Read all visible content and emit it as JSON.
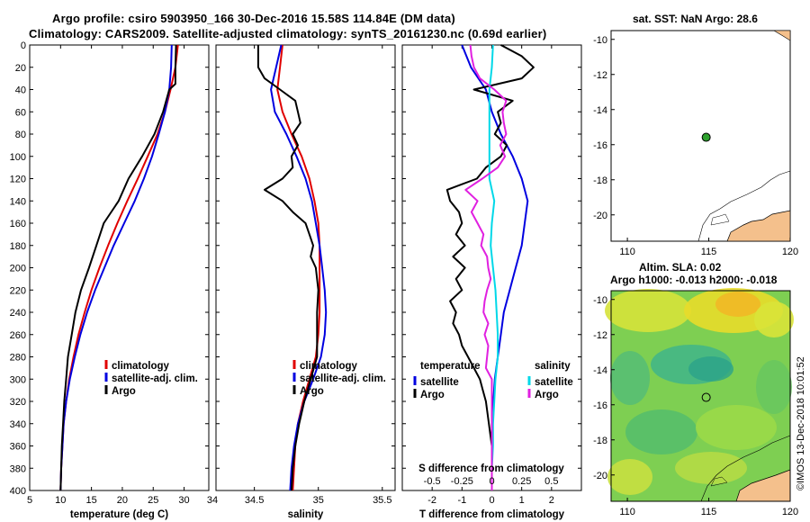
{
  "header": {
    "title_line1": "Argo profile: csiro 5903950_166 30-Dec-2016 15.58S 114.84E (DM data)",
    "title_line2": "Climatology: CARS2009. Satellite-adjusted climatology: synTS_20161230.nc (0.69d earlier)"
  },
  "map_sst": {
    "title": "sat. SST: NaN Argo: 28.6",
    "x_ticks": [
      "110",
      "115",
      "120"
    ],
    "y_ticks": [
      "-10",
      "-12",
      "-14",
      "-16",
      "-18",
      "-20"
    ],
    "xlim": [
      109,
      120
    ],
    "ylim": [
      -21.5,
      -9.5
    ],
    "argo_marker": {
      "lon": 114.84,
      "lat": -15.58,
      "color": "#2ea12e"
    },
    "land_color": "#f4c08c"
  },
  "map_sla": {
    "title_line1": "Altim. SLA: 0.02",
    "title_line2": "Argo h1000: -0.013 h2000: -0.018",
    "x_ticks": [
      "110",
      "115",
      "120"
    ],
    "y_ticks": [
      "-10",
      "-12",
      "-14",
      "-16",
      "-18",
      "-20"
    ],
    "xlim": [
      109,
      120
    ],
    "ylim": [
      -21.5,
      -9.5
    ],
    "argo_marker": {
      "lon": 114.84,
      "lat": -15.58
    }
  },
  "credit": "©IMOS 13-Dec-2018 10:01:52",
  "chart_data": [
    {
      "type": "line",
      "panel": "temperature",
      "xlabel": "temperature (deg C)",
      "ylabel": "",
      "xlim": [
        5,
        34
      ],
      "ylim": [
        400,
        0
      ],
      "x_ticks": [
        "5",
        "10",
        "15",
        "20",
        "25",
        "30"
      ],
      "x_tick_values": [
        5,
        10,
        15,
        20,
        25,
        30
      ],
      "depth_ticks": [
        "0",
        "20",
        "40",
        "60",
        "80",
        "100",
        "120",
        "140",
        "160",
        "180",
        "200",
        "220",
        "240",
        "260",
        "280",
        "300",
        "320",
        "340",
        "360",
        "380",
        "400"
      ],
      "legend": [
        "climatology",
        "satellite-adj. clim.",
        "Argo"
      ],
      "series": [
        {
          "name": "climatology",
          "color": "#e00000",
          "depth": [
            0,
            20,
            40,
            60,
            80,
            100,
            120,
            140,
            160,
            180,
            200,
            220,
            240,
            260,
            280,
            300,
            320,
            340,
            360,
            380,
            400
          ],
          "values": [
            29.0,
            28.6,
            27.8,
            26.9,
            25.7,
            24.1,
            22.5,
            20.8,
            19.2,
            17.7,
            16.3,
            15.0,
            13.9,
            12.9,
            12.1,
            11.4,
            10.9,
            10.5,
            10.3,
            10.1,
            10.0
          ]
        },
        {
          "name": "satellite-adj. clim.",
          "color": "#0000e0",
          "depth": [
            0,
            20,
            40,
            60,
            80,
            100,
            120,
            140,
            160,
            180,
            200,
            220,
            240,
            260,
            280,
            300,
            320,
            340,
            360,
            380,
            400
          ],
          "values": [
            28.0,
            27.9,
            27.6,
            26.9,
            25.9,
            24.8,
            23.5,
            22.0,
            20.3,
            18.6,
            17.1,
            15.6,
            14.3,
            13.2,
            12.3,
            11.5,
            10.9,
            10.5,
            10.3,
            10.1,
            10.0
          ]
        },
        {
          "name": "Argo",
          "color": "#000000",
          "depth": [
            0,
            20,
            35,
            40,
            60,
            80,
            100,
            120,
            140,
            160,
            180,
            200,
            220,
            240,
            260,
            280,
            300,
            320,
            340,
            360,
            380,
            400
          ],
          "values": [
            28.7,
            28.6,
            28.6,
            27.6,
            26.6,
            25.2,
            23.2,
            21.0,
            19.4,
            17.0,
            15.8,
            14.6,
            13.3,
            12.4,
            11.8,
            11.2,
            10.9,
            10.6,
            10.4,
            10.2,
            10.1,
            10.0
          ]
        }
      ]
    },
    {
      "type": "line",
      "panel": "salinity",
      "xlabel": "salinity",
      "ylabel": "",
      "xlim": [
        34.2,
        35.6
      ],
      "ylim": [
        400,
        0
      ],
      "x_ticks": [
        "34.5",
        "35",
        "35.5"
      ],
      "x_tick_values": [
        34.5,
        35.0,
        35.5
      ],
      "legend": [
        "climatology",
        "satellite-adj. clim.",
        "Argo"
      ],
      "series": [
        {
          "name": "climatology",
          "color": "#e00000",
          "depth": [
            0,
            20,
            40,
            60,
            80,
            100,
            120,
            140,
            160,
            180,
            200,
            220,
            240,
            260,
            280,
            300,
            320,
            340,
            360,
            380,
            400
          ],
          "values": [
            34.72,
            34.7,
            34.68,
            34.72,
            34.79,
            34.87,
            34.93,
            34.97,
            35.0,
            35.01,
            35.01,
            35.01,
            35.01,
            35.0,
            34.98,
            34.93,
            34.88,
            34.84,
            34.82,
            34.81,
            34.8
          ]
        },
        {
          "name": "satellite-adj. clim.",
          "color": "#0000e0",
          "depth": [
            0,
            20,
            40,
            60,
            80,
            100,
            120,
            140,
            160,
            180,
            200,
            220,
            240,
            260,
            280,
            300,
            320,
            340,
            360,
            380,
            400
          ],
          "values": [
            34.71,
            34.67,
            34.63,
            34.66,
            34.75,
            34.83,
            34.9,
            34.95,
            34.98,
            35.01,
            35.03,
            35.05,
            35.06,
            35.05,
            35.02,
            34.96,
            34.89,
            34.84,
            34.81,
            34.79,
            34.78
          ]
        },
        {
          "name": "Argo",
          "color": "#000000",
          "depth": [
            0,
            20,
            30,
            40,
            50,
            60,
            70,
            80,
            90,
            100,
            110,
            120,
            130,
            140,
            150,
            160,
            170,
            180,
            190,
            200,
            220,
            240,
            260,
            280,
            300,
            320,
            340,
            360,
            380,
            400
          ],
          "values": [
            34.53,
            34.53,
            34.58,
            34.7,
            34.82,
            34.84,
            34.86,
            34.8,
            34.84,
            34.79,
            34.8,
            34.72,
            34.58,
            34.72,
            34.8,
            34.9,
            34.93,
            34.96,
            34.94,
            34.98,
            35.0,
            34.99,
            34.99,
            34.99,
            34.94,
            34.89,
            34.85,
            34.82,
            34.8,
            34.79
          ]
        }
      ]
    },
    {
      "type": "line",
      "panel": "difference",
      "xlabel": "T difference from climatology",
      "xlabel_top": "S difference from climatology",
      "xlim": [
        -3,
        3
      ],
      "ylim": [
        400,
        0
      ],
      "x_ticks": [
        "-2",
        "-1",
        "0",
        "1",
        "2"
      ],
      "x_tick_values": [
        -2,
        -1,
        0,
        1,
        2
      ],
      "s_ticks": [
        "-0.5",
        "-0.25",
        "0",
        "0.25",
        "0.5"
      ],
      "s_tick_values": [
        -0.5,
        -0.25,
        0,
        0.25,
        0.5
      ],
      "legend_temperature_header": "temperature",
      "legend_salinity_header": "salinity",
      "legend": [
        "satellite",
        "Argo",
        "satellite",
        "Argo"
      ],
      "series": [
        {
          "name": "satellite (temperature)",
          "color": "#0000e0",
          "depth": [
            0,
            20,
            40,
            60,
            80,
            100,
            120,
            140,
            160,
            180,
            200,
            220,
            240,
            260,
            280,
            300,
            320,
            340,
            360,
            380,
            400
          ],
          "values": [
            -1.0,
            -0.7,
            -0.2,
            0.0,
            0.3,
            0.7,
            1.0,
            1.2,
            1.1,
            1.0,
            0.8,
            0.6,
            0.4,
            0.3,
            0.2,
            0.1,
            0.05,
            0.02,
            0.0,
            0.0,
            0.0
          ]
        },
        {
          "name": "Argo (temperature)",
          "color": "#000000",
          "depth": [
            0,
            10,
            20,
            30,
            40,
            50,
            60,
            70,
            80,
            90,
            100,
            110,
            120,
            130,
            140,
            150,
            160,
            170,
            180,
            190,
            200,
            210,
            220,
            230,
            240,
            250,
            260,
            270,
            280,
            290,
            300,
            310,
            320,
            340,
            360,
            380,
            400
          ],
          "values": [
            0.3,
            1.0,
            1.4,
            1.0,
            -0.6,
            0.7,
            0.2,
            0.3,
            0.1,
            0.5,
            0.3,
            -0.2,
            -0.5,
            -1.5,
            -1.4,
            -1.1,
            -1.0,
            -1.2,
            -0.9,
            -1.3,
            -0.9,
            -1.2,
            -1.0,
            -1.4,
            -1.2,
            -1.3,
            -1.1,
            -1.0,
            -0.8,
            -0.6,
            -0.4,
            -0.3,
            -0.2,
            -0.1,
            0.0,
            0.0,
            0.0
          ]
        },
        {
          "name": "satellite (salinity)",
          "color": "#00d8e8",
          "depth": [
            0,
            20,
            40,
            60,
            80,
            100,
            120,
            140,
            160,
            180,
            200,
            220,
            240,
            260,
            280,
            300,
            320,
            340,
            360,
            380,
            400
          ],
          "values": [
            0.01,
            0.0,
            -0.02,
            -0.02,
            -0.02,
            -0.02,
            -0.02,
            0.02,
            0.0,
            -0.01,
            0.01,
            0.03,
            0.04,
            0.05,
            0.05,
            0.03,
            0.02,
            0.01,
            0.01,
            0.0,
            0.0
          ]
        },
        {
          "name": "Argo (salinity)",
          "color": "#e020e0",
          "depth": [
            0,
            10,
            20,
            30,
            40,
            50,
            60,
            70,
            80,
            90,
            100,
            110,
            120,
            130,
            140,
            150,
            160,
            170,
            180,
            190,
            200,
            210,
            220,
            230,
            240,
            250,
            260,
            270,
            280,
            290,
            300,
            310,
            320,
            340,
            360,
            380,
            400
          ],
          "values": [
            -0.18,
            -0.17,
            -0.15,
            -0.1,
            0.02,
            0.12,
            0.09,
            0.1,
            0.12,
            0.07,
            0.11,
            0.05,
            -0.08,
            -0.22,
            -0.12,
            -0.17,
            -0.12,
            -0.07,
            -0.09,
            -0.04,
            -0.03,
            -0.01,
            -0.04,
            -0.06,
            -0.07,
            -0.03,
            -0.06,
            -0.03,
            -0.04,
            -0.05,
            0.0,
            0.0,
            0.0,
            0.0,
            0.0,
            0.0,
            0.0
          ]
        }
      ]
    }
  ]
}
